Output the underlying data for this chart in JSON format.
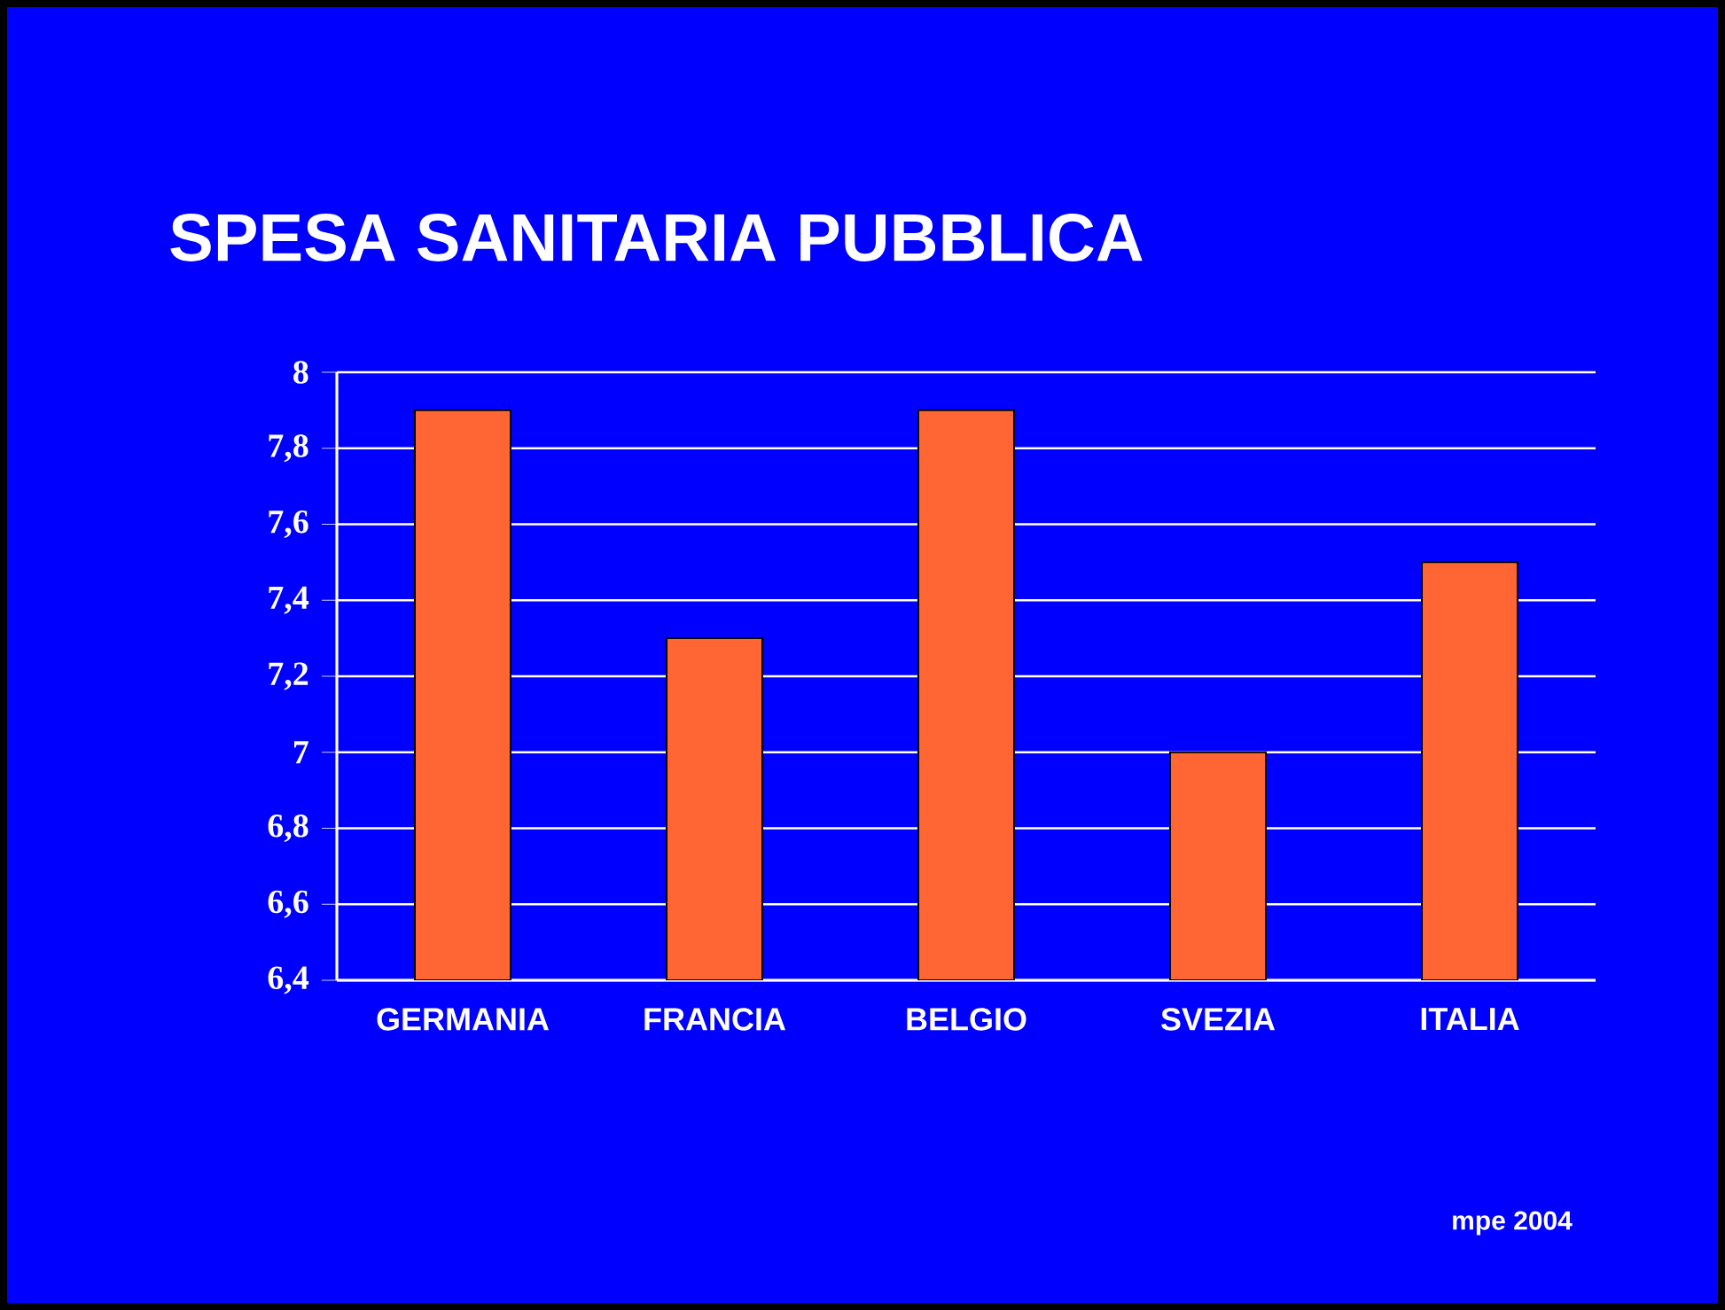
{
  "chart_data": {
    "type": "bar",
    "title": "SPESA SANITARIA PUBBLICA",
    "categories": [
      "GERMANIA",
      "FRANCIA",
      "BELGIO",
      "SVEZIA",
      "ITALIA"
    ],
    "values": [
      7.9,
      7.3,
      7.9,
      7.0,
      7.5
    ],
    "color": "#ff6633",
    "ylim": [
      6.4,
      8
    ],
    "yticks": [
      {
        "value": 6.4,
        "label": "6,4"
      },
      {
        "value": 6.6,
        "label": "6,6"
      },
      {
        "value": 6.8,
        "label": "6,8"
      },
      {
        "value": 7,
        "label": "7"
      },
      {
        "value": 7.2,
        "label": "7,2"
      },
      {
        "value": 7.4,
        "label": "7,4"
      },
      {
        "value": 7.6,
        "label": "7,6"
      },
      {
        "value": 7.8,
        "label": "7,8"
      },
      {
        "value": 8,
        "label": "8"
      }
    ],
    "grid": true,
    "annotations": [
      "mpe 2004"
    ]
  }
}
